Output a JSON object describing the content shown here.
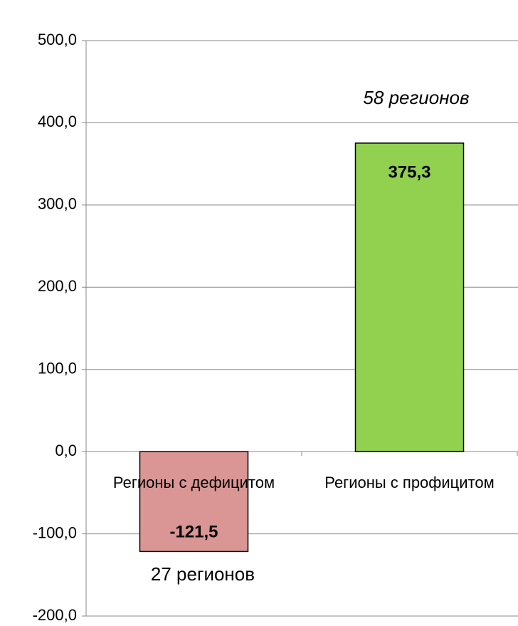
{
  "chart_data": {
    "type": "bar",
    "categories": [
      "Регионы с дефицитом",
      "Регионы с профицитом"
    ],
    "values": [
      -121.5,
      375.3
    ],
    "value_labels": [
      "-121,5",
      "375,3"
    ],
    "colors": [
      "#d99694",
      "#92d050"
    ],
    "ylim": [
      -200,
      500
    ],
    "yticks": [
      {
        "value": -200,
        "label": "-200,0"
      },
      {
        "value": -100,
        "label": "-100,0"
      },
      {
        "value": 0,
        "label": "0,0"
      },
      {
        "value": 100,
        "label": "100,0"
      },
      {
        "value": 200,
        "label": "200,0"
      },
      {
        "value": 300,
        "label": "300,0"
      },
      {
        "value": 400,
        "label": "400,0"
      },
      {
        "value": 500,
        "label": "500,0"
      }
    ],
    "grid": true,
    "annotations": [
      "27 регионов",
      "58 регионов"
    ]
  }
}
